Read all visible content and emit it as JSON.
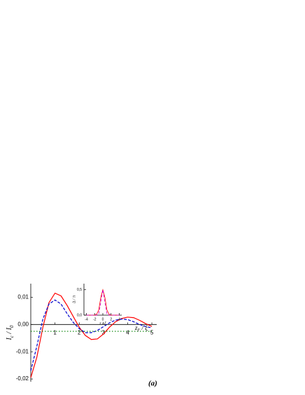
{
  "chart_data": [
    {
      "type": "line",
      "y_label": {
        "main": "I",
        "sub": "c",
        "mid": " / I",
        "sub2": "0"
      },
      "x_label": {
        "main": "z",
        "sub": "F",
        "rest": " / ξ"
      },
      "annotation": "(a)",
      "x": [
        0,
        0.25,
        0.5,
        0.75,
        1,
        1.25,
        1.5,
        1.75,
        2,
        2.25,
        2.5,
        2.75,
        3,
        3.25,
        3.5,
        3.75,
        4,
        4.25,
        4.5,
        4.75,
        5
      ],
      "series": [
        {
          "color": "#ff0000",
          "dash": "solid",
          "values": [
            -0.0195,
            -0.012,
            -0.001,
            0.008,
            0.0115,
            0.0105,
            0.007,
            0.003,
            -0.001,
            -0.004,
            -0.0055,
            -0.0053,
            -0.0035,
            -0.001,
            0.001,
            0.0022,
            0.0027,
            0.0025,
            0.0015,
            0.0003,
            -0.0007
          ]
        },
        {
          "color": "#0000cc",
          "dash": "dashed",
          "values": [
            -0.017,
            -0.008,
            0.002,
            0.0075,
            0.009,
            0.0075,
            0.004,
            0.0008,
            -0.0015,
            -0.003,
            -0.003,
            -0.0022,
            -0.0008,
            0.0006,
            0.0016,
            0.002,
            0.0018,
            0.001,
            0,
            -0.0008,
            -0.0012
          ]
        },
        {
          "color": "#008000",
          "dash": "dotted",
          "values": [
            -0.0025,
            -0.0025,
            -0.0025,
            -0.0025,
            -0.0025,
            -0.0025,
            -0.0025,
            -0.0025,
            -0.0025,
            -0.0025,
            -0.0025,
            -0.0025,
            -0.0025,
            -0.0025,
            -0.0025,
            -0.0025,
            -0.0025,
            -0.0025,
            -0.0025,
            -0.0025,
            -0.0025
          ]
        }
      ],
      "xlim": [
        0,
        5.2
      ],
      "xticks": [
        1,
        2,
        3,
        4,
        5
      ],
      "ylim": [
        -0.021,
        0.015
      ],
      "yticks": [
        {
          "value": -0.02,
          "label": "-0,02"
        },
        {
          "value": -0.01,
          "label": "-0,01"
        },
        {
          "value": 0,
          "label": "0,00"
        },
        {
          "value": 0.01,
          "label": "0,01"
        }
      ]
    },
    {
      "type": "line",
      "y_label": {
        "main": "Δ / π"
      },
      "x_label": {
        "main": "z / ξ"
      },
      "x": [
        -4,
        -3.5,
        -3,
        -2.5,
        -2,
        -1.5,
        -1,
        -0.5,
        0,
        0.5,
        1,
        1.5,
        2,
        2.5,
        3,
        3.5,
        4
      ],
      "series": [
        {
          "color": "#ff0000",
          "dash": "solid",
          "values": [
            0,
            0,
            0,
            0,
            0,
            0.02,
            0.1,
            0.35,
            0.5,
            0.35,
            0.1,
            0.02,
            0,
            0,
            0,
            0,
            0
          ]
        },
        {
          "color": "#cc00cc",
          "dash": "dashed",
          "values": [
            0,
            0,
            0,
            0,
            0,
            0,
            0.03,
            0.25,
            0.5,
            0.25,
            0.03,
            0,
            0,
            0,
            0,
            0,
            0
          ]
        }
      ],
      "xlim": [
        -4.6,
        4.6
      ],
      "xticks": [
        -4,
        -2,
        0,
        2,
        4
      ],
      "ylim": [
        0,
        0.62
      ],
      "yticks": [
        {
          "value": 0,
          "label": "0,0"
        },
        {
          "value": 0.5,
          "label": "0,5"
        }
      ]
    }
  ]
}
